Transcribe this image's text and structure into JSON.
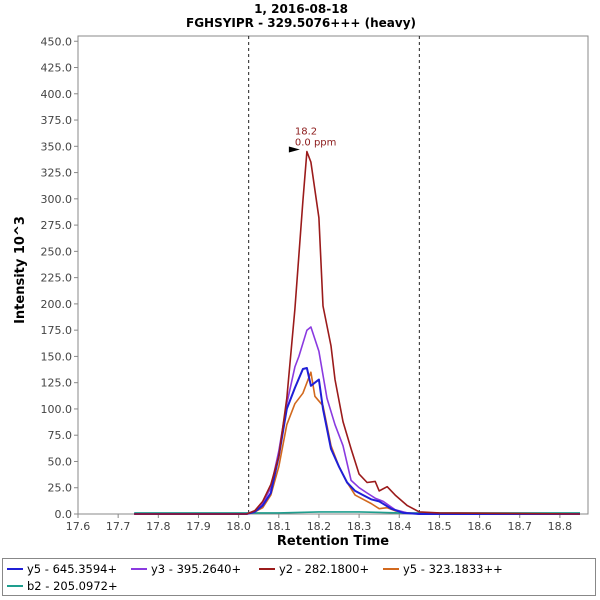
{
  "chart_data": {
    "type": "line",
    "title": "1, 2016-08-18",
    "subtitle": "FGHSYIPR - 329.5076+++ (heavy)",
    "xlabel": "Retention Time",
    "ylabel": "Intensity 10^3",
    "xlim": [
      17.6,
      18.87
    ],
    "ylim": [
      0,
      455
    ],
    "x_ticks": [
      "17.6",
      "17.7",
      "17.8",
      "17.9",
      "18.0",
      "18.1",
      "18.2",
      "18.3",
      "18.4",
      "18.5",
      "18.6",
      "18.7",
      "18.8"
    ],
    "y_ticks": [
      "0.0",
      "25.0",
      "50.0",
      "75.0",
      "100.0",
      "125.0",
      "150.0",
      "175.0",
      "200.0",
      "225.0",
      "250.0",
      "275.0",
      "300.0",
      "325.0",
      "350.0",
      "375.0",
      "400.0",
      "425.0",
      "450.0"
    ],
    "grid": false,
    "legend_position": "bottom",
    "boundaries": [
      18.025,
      18.45
    ],
    "peak_annotation": {
      "x": 18.16,
      "y": 345,
      "label_rt": "18.2",
      "label_ppm": "0.0 ppm"
    },
    "series": [
      {
        "name": "y5 - 645.3594+",
        "color": "#1f1fd6",
        "points": [
          [
            17.74,
            0
          ],
          [
            18.02,
            0
          ],
          [
            18.04,
            2
          ],
          [
            18.06,
            8
          ],
          [
            18.08,
            20
          ],
          [
            18.1,
            55
          ],
          [
            18.12,
            100
          ],
          [
            18.14,
            120
          ],
          [
            18.16,
            138
          ],
          [
            18.17,
            139
          ],
          [
            18.18,
            122
          ],
          [
            18.2,
            128
          ],
          [
            18.21,
            100
          ],
          [
            18.23,
            62
          ],
          [
            18.25,
            45
          ],
          [
            18.27,
            30
          ],
          [
            18.29,
            22
          ],
          [
            18.31,
            18
          ],
          [
            18.33,
            14
          ],
          [
            18.35,
            12
          ],
          [
            18.38,
            5
          ],
          [
            18.41,
            1
          ],
          [
            18.45,
            0
          ],
          [
            18.85,
            0
          ]
        ]
      },
      {
        "name": "y3 - 395.2640+",
        "color": "#8a3ae0",
        "points": [
          [
            17.74,
            0
          ],
          [
            18.02,
            0
          ],
          [
            18.04,
            3
          ],
          [
            18.06,
            10
          ],
          [
            18.08,
            25
          ],
          [
            18.1,
            60
          ],
          [
            18.12,
            105
          ],
          [
            18.14,
            140
          ],
          [
            18.15,
            150
          ],
          [
            18.17,
            175
          ],
          [
            18.18,
            178
          ],
          [
            18.2,
            155
          ],
          [
            18.22,
            110
          ],
          [
            18.24,
            85
          ],
          [
            18.26,
            65
          ],
          [
            18.28,
            32
          ],
          [
            18.3,
            25
          ],
          [
            18.32,
            20
          ],
          [
            18.34,
            15
          ],
          [
            18.36,
            12
          ],
          [
            18.39,
            4
          ],
          [
            18.42,
            1
          ],
          [
            18.45,
            0
          ],
          [
            18.85,
            0
          ]
        ]
      },
      {
        "name": "y2 - 282.1800+",
        "color": "#9b1b1b",
        "points": [
          [
            17.74,
            0
          ],
          [
            18.02,
            0
          ],
          [
            18.04,
            3
          ],
          [
            18.06,
            12
          ],
          [
            18.08,
            28
          ],
          [
            18.1,
            55
          ],
          [
            18.12,
            110
          ],
          [
            18.14,
            195
          ],
          [
            18.16,
            298
          ],
          [
            18.17,
            345
          ],
          [
            18.18,
            335
          ],
          [
            18.2,
            282
          ],
          [
            18.21,
            198
          ],
          [
            18.23,
            160
          ],
          [
            18.24,
            128
          ],
          [
            18.26,
            88
          ],
          [
            18.28,
            62
          ],
          [
            18.3,
            38
          ],
          [
            18.32,
            30
          ],
          [
            18.34,
            31
          ],
          [
            18.35,
            22
          ],
          [
            18.37,
            26
          ],
          [
            18.39,
            18
          ],
          [
            18.42,
            8
          ],
          [
            18.45,
            2
          ],
          [
            18.5,
            1
          ],
          [
            18.85,
            0
          ]
        ]
      },
      {
        "name": "y5 - 323.1833++",
        "color": "#d2691e",
        "points": [
          [
            17.74,
            0
          ],
          [
            18.02,
            0
          ],
          [
            18.04,
            2
          ],
          [
            18.06,
            6
          ],
          [
            18.08,
            18
          ],
          [
            18.1,
            45
          ],
          [
            18.12,
            85
          ],
          [
            18.14,
            105
          ],
          [
            18.16,
            115
          ],
          [
            18.18,
            135
          ],
          [
            18.19,
            112
          ],
          [
            18.21,
            103
          ],
          [
            18.23,
            65
          ],
          [
            18.25,
            45
          ],
          [
            18.27,
            30
          ],
          [
            18.29,
            18
          ],
          [
            18.31,
            14
          ],
          [
            18.33,
            10
          ],
          [
            18.35,
            5
          ],
          [
            18.37,
            6
          ],
          [
            18.39,
            3
          ],
          [
            18.42,
            1
          ],
          [
            18.45,
            0
          ],
          [
            18.85,
            0
          ]
        ]
      },
      {
        "name": "b2 - 205.0972+",
        "color": "#1e9e8e",
        "points": [
          [
            17.74,
            1
          ],
          [
            18.0,
            1
          ],
          [
            18.1,
            1
          ],
          [
            18.2,
            2
          ],
          [
            18.3,
            2
          ],
          [
            18.4,
            1
          ],
          [
            18.6,
            1
          ],
          [
            18.85,
            1
          ]
        ]
      }
    ]
  }
}
